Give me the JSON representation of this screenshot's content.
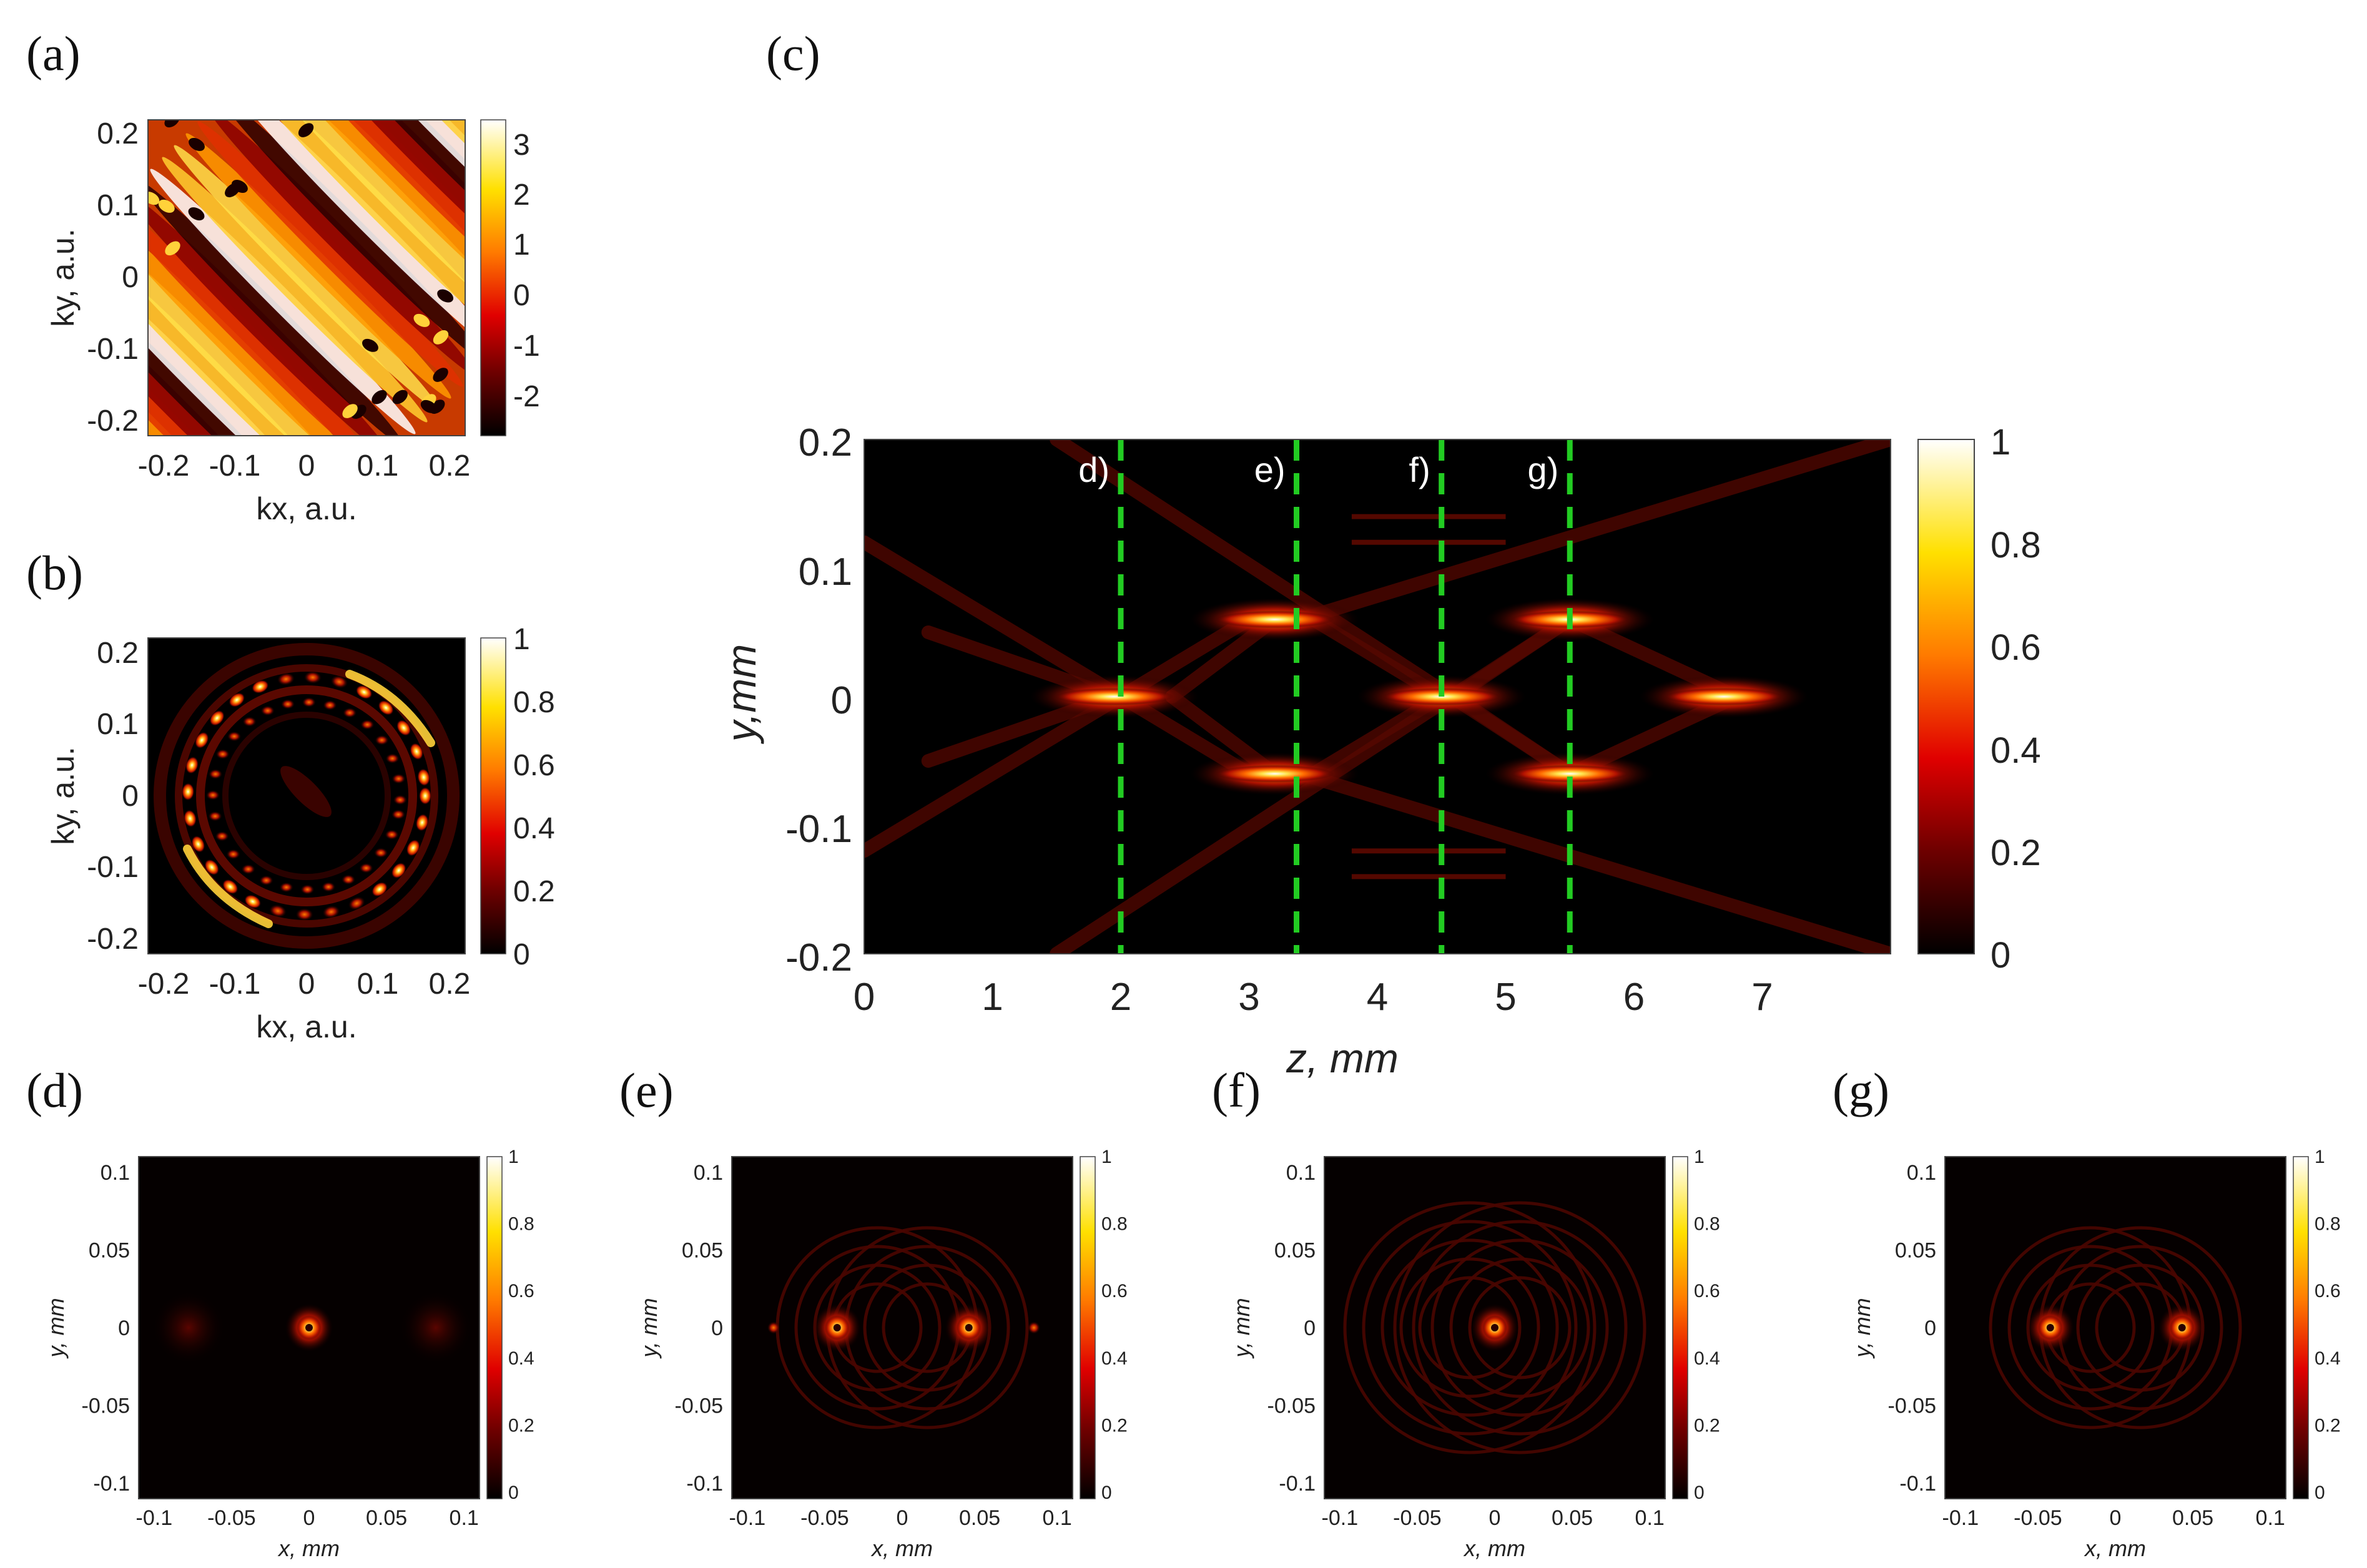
{
  "panels": {
    "a": {
      "label": "(a)",
      "xlabel": "kx, a.u.",
      "ylabel": "ky, a.u.",
      "xticks": [
        "-0.2",
        "-0.1",
        "0",
        "0.1",
        "0.2"
      ],
      "yticks": [
        "0.2",
        "0.1",
        "0",
        "-0.1",
        "-0.2"
      ],
      "colorbar_ticks": [
        "3",
        "2",
        "1",
        "0",
        "-1",
        "-2"
      ]
    },
    "b": {
      "label": "(b)",
      "xlabel": "kx, a.u.",
      "ylabel": "ky, a.u.",
      "xticks": [
        "-0.2",
        "-0.1",
        "0",
        "0.1",
        "0.2"
      ],
      "yticks": [
        "0.2",
        "0.1",
        "0",
        "-0.1",
        "-0.2"
      ],
      "colorbar_ticks": [
        "1",
        "0.8",
        "0.6",
        "0.4",
        "0.2",
        "0"
      ]
    },
    "c": {
      "label": "(c)",
      "xlabel": "z, mm",
      "ylabel": "y,mm",
      "xticks": [
        "0",
        "1",
        "2",
        "3",
        "4",
        "5",
        "6",
        "7"
      ],
      "yticks": [
        "0.2",
        "0.1",
        "0",
        "-0.1",
        "-0.2"
      ],
      "colorbar_ticks": [
        "1",
        "0.8",
        "0.6",
        "0.4",
        "0.2",
        "0"
      ],
      "markers": [
        "d)",
        "e)",
        "f)",
        "g)"
      ]
    },
    "d": {
      "label": "(d)",
      "xlabel": "x, mm",
      "ylabel": "y, mm",
      "xticks": [
        "-0.1",
        "-0.05",
        "0",
        "0.05",
        "0.1"
      ],
      "yticks": [
        "0.1",
        "0.05",
        "0",
        "-0.05",
        "-0.1"
      ],
      "colorbar_ticks": [
        "1",
        "0.8",
        "0.6",
        "0.4",
        "0.2",
        "0"
      ]
    },
    "e": {
      "label": "(e)",
      "xlabel": "x, mm",
      "ylabel": "y, mm",
      "xticks": [
        "-0.1",
        "-0.05",
        "0",
        "0.05",
        "0.1"
      ],
      "yticks": [
        "0.1",
        "0.05",
        "0",
        "-0.05",
        "-0.1"
      ],
      "colorbar_ticks": [
        "1",
        "0.8",
        "0.6",
        "0.4",
        "0.2",
        "0"
      ]
    },
    "f": {
      "label": "(f)",
      "xlabel": "x, mm",
      "ylabel": "y, mm",
      "xticks": [
        "-0.1",
        "-0.05",
        "0",
        "0.05",
        "0.1"
      ],
      "yticks": [
        "0.1",
        "0.05",
        "0",
        "-0.05",
        "-0.1"
      ],
      "colorbar_ticks": [
        "1",
        "0.8",
        "0.6",
        "0.4",
        "0.2",
        "0"
      ]
    },
    "g": {
      "label": "(g)",
      "xlabel": "x, mm",
      "ylabel": "y, mm",
      "xticks": [
        "-0.1",
        "-0.05",
        "0",
        "0.05",
        "0.1"
      ],
      "yticks": [
        "0.1",
        "0.05",
        "0",
        "-0.05",
        "-0.1"
      ],
      "colorbar_ticks": [
        "1",
        "0.8",
        "0.6",
        "0.4",
        "0.2",
        "0"
      ]
    }
  },
  "chart_data": [
    {
      "panel": "a",
      "type": "heatmap",
      "xlabel": "kx, a.u.",
      "ylabel": "ky, a.u.",
      "xlim": [
        -0.22,
        0.22
      ],
      "ylim": [
        -0.22,
        0.22
      ],
      "colorbar": {
        "colormap": "hot",
        "range": [
          -3.14,
          3.14
        ],
        "ticks": [
          3,
          2,
          1,
          0,
          -1,
          -2
        ]
      }
    },
    {
      "panel": "b",
      "type": "heatmap",
      "xlabel": "kx, a.u.",
      "ylabel": "ky, a.u.",
      "xlim": [
        -0.22,
        0.22
      ],
      "ylim": [
        -0.22,
        0.22
      ],
      "colorbar": {
        "colormap": "hot",
        "range": [
          0,
          1
        ],
        "ticks": [
          1,
          0.8,
          0.6,
          0.4,
          0.2,
          0
        ]
      }
    },
    {
      "panel": "c",
      "type": "heatmap",
      "xlabel": "z, mm",
      "ylabel": "y,mm",
      "xlim": [
        0,
        8
      ],
      "ylim": [
        -0.2,
        0.2
      ],
      "colorbar": {
        "colormap": "hot",
        "range": [
          0,
          1
        ],
        "ticks": [
          1,
          0.8,
          0.6,
          0.4,
          0.2,
          0
        ]
      },
      "markers": [
        {
          "label": "d)",
          "z": 2.0
        },
        {
          "label": "e)",
          "z": 3.37
        },
        {
          "label": "f)",
          "z": 4.5
        },
        {
          "label": "g)",
          "z": 5.5
        }
      ],
      "marker_color": "#22cc22",
      "foci": [
        {
          "z": 1.95,
          "y": 0.0
        },
        {
          "z": 3.2,
          "y": 0.06
        },
        {
          "z": 3.2,
          "y": -0.06
        },
        {
          "z": 4.5,
          "y": 0.0
        },
        {
          "z": 5.5,
          "y": 0.06
        },
        {
          "z": 5.5,
          "y": -0.06
        },
        {
          "z": 6.7,
          "y": 0.0
        }
      ]
    },
    {
      "panel": "d",
      "type": "heatmap",
      "xlabel": "x, mm",
      "ylabel": "y, mm",
      "xlim": [
        -0.11,
        0.11
      ],
      "ylim": [
        -0.11,
        0.11
      ],
      "spots": [
        {
          "x": 0.0,
          "y": 0.0
        }
      ],
      "colorbar": {
        "colormap": "hot",
        "range": [
          0,
          1
        ]
      }
    },
    {
      "panel": "e",
      "type": "heatmap",
      "xlabel": "x, mm",
      "ylabel": "y, mm",
      "xlim": [
        -0.11,
        0.11
      ],
      "ylim": [
        -0.11,
        0.11
      ],
      "spots": [
        {
          "x": -0.042,
          "y": 0.0
        },
        {
          "x": 0.043,
          "y": 0.0
        }
      ],
      "colorbar": {
        "colormap": "hot",
        "range": [
          0,
          1
        ]
      }
    },
    {
      "panel": "f",
      "type": "heatmap",
      "xlabel": "x, mm",
      "ylabel": "y, mm",
      "xlim": [
        -0.11,
        0.11
      ],
      "ylim": [
        -0.11,
        0.11
      ],
      "spots": [
        {
          "x": 0.0,
          "y": 0.0
        }
      ],
      "colorbar": {
        "colormap": "hot",
        "range": [
          0,
          1
        ]
      }
    },
    {
      "panel": "g",
      "type": "heatmap",
      "xlabel": "x, mm",
      "ylabel": "y, mm",
      "xlim": [
        -0.11,
        0.11
      ],
      "ylim": [
        -0.11,
        0.11
      ],
      "spots": [
        {
          "x": -0.042,
          "y": 0.0
        },
        {
          "x": 0.043,
          "y": 0.0
        }
      ],
      "colorbar": {
        "colormap": "hot",
        "range": [
          0,
          1
        ]
      }
    }
  ]
}
